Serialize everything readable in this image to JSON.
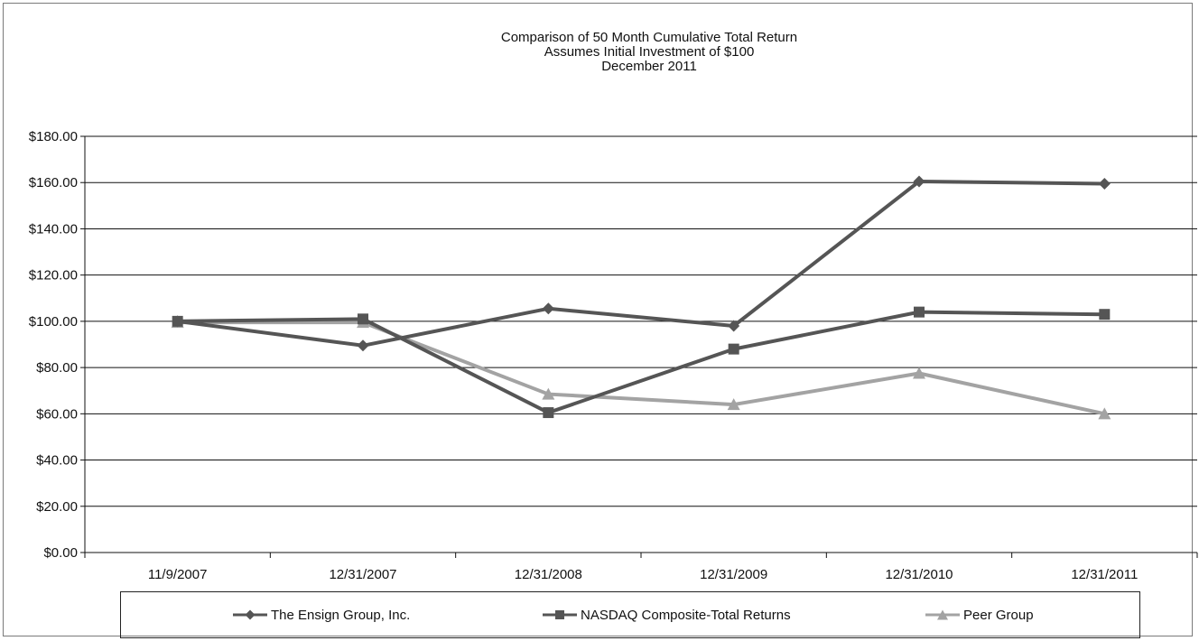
{
  "chart_data": {
    "type": "line",
    "title": "Comparison of 50 Month Cumulative Total Return",
    "subtitle_lines": [
      "Assumes Initial Investment of $100",
      "December 2011"
    ],
    "xlabel": "",
    "ylabel": "",
    "categories": [
      "11/9/2007",
      "12/31/2007",
      "12/31/2008",
      "12/31/2009",
      "12/31/2010",
      "12/31/2011"
    ],
    "ylim": [
      0,
      180
    ],
    "yticks": [
      0,
      20,
      40,
      60,
      80,
      100,
      120,
      140,
      160,
      180
    ],
    "ytick_labels": [
      "$0.00",
      "$20.00",
      "$40.00",
      "$60.00",
      "$80.00",
      "$100.00",
      "$120.00",
      "$140.00",
      "$160.00",
      "$180.00"
    ],
    "grid": "horizontal",
    "legend_position": "bottom",
    "series": [
      {
        "name": "The Ensign Group, Inc.",
        "values": [
          100,
          89.5,
          105.5,
          98,
          160.5,
          159.5
        ],
        "color": "#555555",
        "marker": "diamond"
      },
      {
        "name": "NASDAQ Composite-Total Returns",
        "values": [
          100,
          101,
          60.5,
          88,
          104,
          103
        ],
        "color": "#555555",
        "marker": "square"
      },
      {
        "name": "Peer Group",
        "values": [
          99.5,
          99.5,
          68.5,
          64,
          77.5,
          60
        ],
        "color": "#a3a3a3",
        "marker": "triangle"
      }
    ]
  }
}
